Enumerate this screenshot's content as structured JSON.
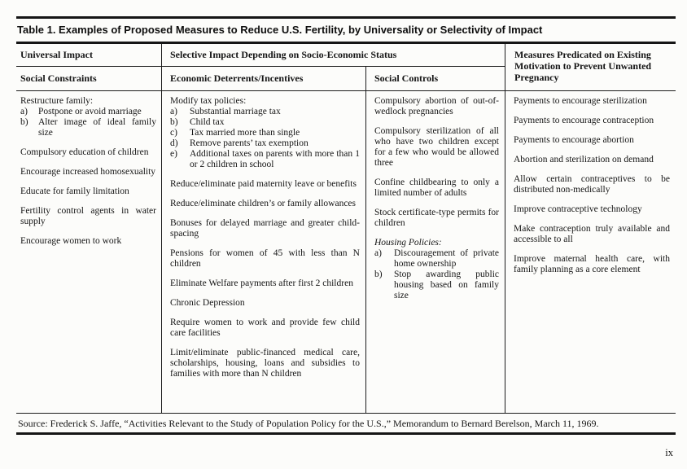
{
  "document": {
    "title": "Table 1. Examples of Proposed Measures to Reduce U.S. Fertility, by Universality or Selectivity of Impact",
    "source": "Source:  Frederick  S.  Jaffe,  “Activities  Relevant  to  the  Study  of  Population  Policy  for  the  U.S.,”  Memorandum  to  Bernard  Berelson,  March  11,  1969.",
    "page_number": "ix"
  },
  "table": {
    "headers": {
      "universal_impact": "Universal Impact",
      "selective_impact": "Selective Impact Depending on Socio-Economic Status",
      "measures_predicated": "Measures Predicated on Existing Motivation to Prevent Unwanted Pregnancy",
      "social_constraints": "Social Constraints",
      "economic_deterrents": "Economic Deterrents/Incentives",
      "social_controls": "Social Controls"
    },
    "social_constraints": {
      "restructure": {
        "lead": "Restructure family:",
        "items": [
          {
            "label": "a)",
            "text": "Postpone or avoid marriage"
          },
          {
            "label": "b)",
            "text": "Alter image of ideal family size"
          }
        ]
      },
      "paras": [
        "Compulsory education of children",
        "Encourage increased homosexuality",
        "Educate for family limitation",
        "Fertility control agents in water supply",
        "Encourage women to work"
      ]
    },
    "economic_deterrents": {
      "tax_policies": {
        "lead": "Modify tax policies:",
        "items": [
          {
            "label": "a)",
            "text": "Substantial marriage tax"
          },
          {
            "label": "b)",
            "text": "Child tax"
          },
          {
            "label": "c)",
            "text": "Tax married more than single"
          },
          {
            "label": "d)",
            "text": "Remove parents’ tax exemption"
          },
          {
            "label": "e)",
            "text": "Additional taxes on parents with more than 1 or 2 children in school"
          }
        ]
      },
      "paras": [
        "Reduce/eliminate paid maternity leave or benefits",
        "Reduce/eliminate children’s or family allowances",
        "Bonuses for delayed marriage and greater child-spacing",
        "Pensions for women of 45 with less than N children",
        "Eliminate Welfare payments after first 2 children",
        "Chronic Depression",
        "Require women to work and provide few child care facilities",
        "Limit/eliminate public-financed medical care, scholarships, housing, loans and subsidies to families with more than N children"
      ]
    },
    "social_controls": {
      "paras": [
        "Compulsory abortion of out-of-wedlock pregnancies",
        "Compulsory sterilization of all who have two children except for a few who would be allowed three",
        "Confine childbearing to only a limited number of adults",
        "Stock certificate-type permits for children"
      ],
      "housing": {
        "lead": "Housing Policies:",
        "items": [
          {
            "label": "a)",
            "text": "Discouragement of private home ownership"
          },
          {
            "label": "b)",
            "text": "Stop awarding public housing based on family size"
          }
        ]
      }
    },
    "measures_predicated": {
      "paras": [
        "Payments to encourage sterilization",
        "Payments to encourage contraception",
        "Payments to encourage abortion",
        "Abortion and sterilization on demand",
        "Allow certain contraceptives to be distributed non-medically",
        "Improve contraceptive technology",
        "Make contraception truly available and accessible to all",
        "Improve maternal health care, with family planning as a core element"
      ]
    }
  }
}
